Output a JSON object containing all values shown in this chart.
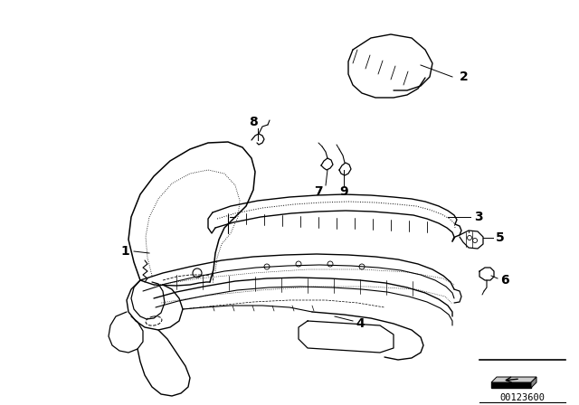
{
  "background_color": "#ffffff",
  "part_number": "00123600",
  "line_color": "#000000",
  "label_fontsize": 10,
  "fig_width": 6.4,
  "fig_height": 4.48,
  "dpi": 100
}
